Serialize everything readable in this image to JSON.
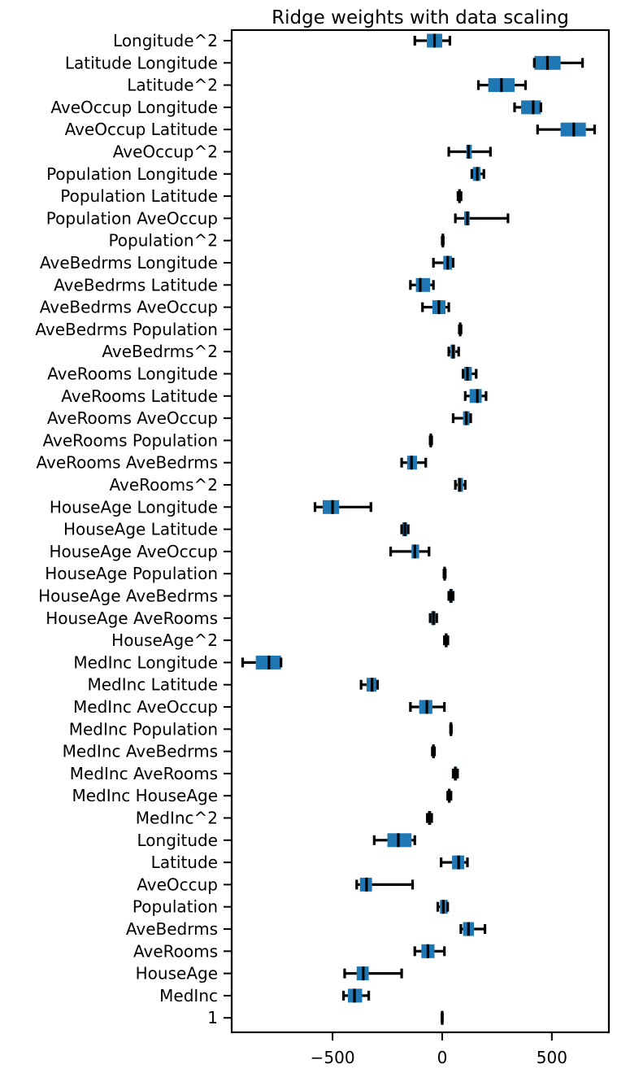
{
  "chart_data": {
    "type": "boxplot",
    "title": "Ridge weights with data scaling",
    "xlabel": "",
    "ylabel": "",
    "xlim": [
      -960,
      760
    ],
    "xticks": [
      -500,
      0,
      500
    ],
    "xtick_labels": [
      "−500",
      "0",
      "500"
    ],
    "grid": false,
    "legend": "none",
    "colors": {
      "box": "#1f77b4",
      "median": "#000000",
      "whisker": "#000000"
    },
    "categories": [
      "Longitude^2",
      "Latitude Longitude",
      "Latitude^2",
      "AveOccup Longitude",
      "AveOccup Latitude",
      "AveOccup^2",
      "Population Longitude",
      "Population Latitude",
      "Population AveOccup",
      "Population^2",
      "AveBedrms Longitude",
      "AveBedrms Latitude",
      "AveBedrms AveOccup",
      "AveBedrms Population",
      "AveBedrms^2",
      "AveRooms Longitude",
      "AveRooms Latitude",
      "AveRooms AveOccup",
      "AveRooms Population",
      "AveRooms AveBedrms",
      "AveRooms^2",
      "HouseAge Longitude",
      "HouseAge Latitude",
      "HouseAge AveOccup",
      "HouseAge Population",
      "HouseAge AveBedrms",
      "HouseAge AveRooms",
      "HouseAge^2",
      "MedInc Longitude",
      "MedInc Latitude",
      "MedInc AveOccup",
      "MedInc Population",
      "MedInc AveBedrms",
      "MedInc AveRooms",
      "MedInc HouseAge",
      "MedInc^2",
      "Longitude",
      "Latitude",
      "AveOccup",
      "Population",
      "AveBedrms",
      "AveRooms",
      "HouseAge",
      "MedInc",
      "1"
    ],
    "boxes": [
      {
        "min": -125,
        "q1": -70,
        "median": -35,
        "q3": 0,
        "max": 35
      },
      {
        "min": 420,
        "q1": 420,
        "median": 480,
        "q3": 540,
        "max": 640
      },
      {
        "min": 165,
        "q1": 210,
        "median": 270,
        "q3": 330,
        "max": 380
      },
      {
        "min": 330,
        "q1": 360,
        "median": 415,
        "q3": 450,
        "max": 450
      },
      {
        "min": 435,
        "q1": 540,
        "median": 600,
        "q3": 655,
        "max": 695
      },
      {
        "min": 30,
        "q1": 110,
        "median": 120,
        "q3": 135,
        "max": 220
      },
      {
        "min": 135,
        "q1": 140,
        "median": 160,
        "q3": 175,
        "max": 190
      },
      {
        "min": 72,
        "q1": 73,
        "median": 79,
        "q3": 84,
        "max": 86
      },
      {
        "min": 60,
        "q1": 100,
        "median": 115,
        "q3": 125,
        "max": 300
      },
      {
        "min": 0,
        "q1": 2,
        "median": 3,
        "q3": 4,
        "max": 5
      },
      {
        "min": -40,
        "q1": 5,
        "median": 25,
        "q3": 45,
        "max": 50
      },
      {
        "min": -145,
        "q1": -120,
        "median": -100,
        "q3": -55,
        "max": -40
      },
      {
        "min": -90,
        "q1": -45,
        "median": -15,
        "q3": 15,
        "max": 30
      },
      {
        "min": 78,
        "q1": 79,
        "median": 82,
        "q3": 85,
        "max": 86
      },
      {
        "min": 30,
        "q1": 38,
        "median": 50,
        "q3": 60,
        "max": 75
      },
      {
        "min": 95,
        "q1": 100,
        "median": 115,
        "q3": 135,
        "max": 155
      },
      {
        "min": 105,
        "q1": 125,
        "median": 160,
        "q3": 180,
        "max": 200
      },
      {
        "min": 50,
        "q1": 95,
        "median": 110,
        "q3": 125,
        "max": 130
      },
      {
        "min": -55,
        "q1": -54,
        "median": -52,
        "q3": -50,
        "max": -48
      },
      {
        "min": -185,
        "q1": -160,
        "median": -140,
        "q3": -115,
        "max": -75
      },
      {
        "min": 60,
        "q1": 70,
        "median": 80,
        "q3": 95,
        "max": 105
      },
      {
        "min": -580,
        "q1": -545,
        "median": -500,
        "q3": -470,
        "max": -325
      },
      {
        "min": -185,
        "q1": -182,
        "median": -170,
        "q3": -160,
        "max": -155
      },
      {
        "min": -235,
        "q1": -140,
        "median": -125,
        "q3": -105,
        "max": -60
      },
      {
        "min": 8,
        "q1": 9,
        "median": 11,
        "q3": 13,
        "max": 14
      },
      {
        "min": 30,
        "q1": 32,
        "median": 40,
        "q3": 48,
        "max": 50
      },
      {
        "min": -55,
        "q1": -50,
        "median": -40,
        "q3": -30,
        "max": -25
      },
      {
        "min": 10,
        "q1": 12,
        "median": 18,
        "q3": 25,
        "max": 26
      },
      {
        "min": -910,
        "q1": -850,
        "median": -790,
        "q3": -735,
        "max": -735
      },
      {
        "min": -370,
        "q1": -345,
        "median": -320,
        "q3": -300,
        "max": -295
      },
      {
        "min": -145,
        "q1": -105,
        "median": -70,
        "q3": -45,
        "max": 10
      },
      {
        "min": 38,
        "q1": 39,
        "median": 40,
        "q3": 41,
        "max": 42
      },
      {
        "min": -45,
        "q1": -44,
        "median": -40,
        "q3": -36,
        "max": -35
      },
      {
        "min": 50,
        "q1": 53,
        "median": 60,
        "q3": 68,
        "max": 70
      },
      {
        "min": 25,
        "q1": 27,
        "median": 32,
        "q3": 38,
        "max": 40
      },
      {
        "min": -68,
        "q1": -65,
        "median": -58,
        "q3": -50,
        "max": -48
      },
      {
        "min": -310,
        "q1": -250,
        "median": -200,
        "q3": -140,
        "max": -125
      },
      {
        "min": -5,
        "q1": 45,
        "median": 75,
        "q3": 100,
        "max": 115
      },
      {
        "min": -390,
        "q1": -375,
        "median": -345,
        "q3": -320,
        "max": -135
      },
      {
        "min": -20,
        "q1": -10,
        "median": 5,
        "q3": 25,
        "max": 25
      },
      {
        "min": 85,
        "q1": 95,
        "median": 120,
        "q3": 145,
        "max": 195
      },
      {
        "min": -125,
        "q1": -95,
        "median": -65,
        "q3": -35,
        "max": 10
      },
      {
        "min": -445,
        "q1": -390,
        "median": -360,
        "q3": -335,
        "max": -185
      },
      {
        "min": -450,
        "q1": -430,
        "median": -400,
        "q3": -365,
        "max": -335
      },
      {
        "min": -1,
        "q1": 0,
        "median": 0,
        "q3": 0,
        "max": 1
      }
    ]
  }
}
